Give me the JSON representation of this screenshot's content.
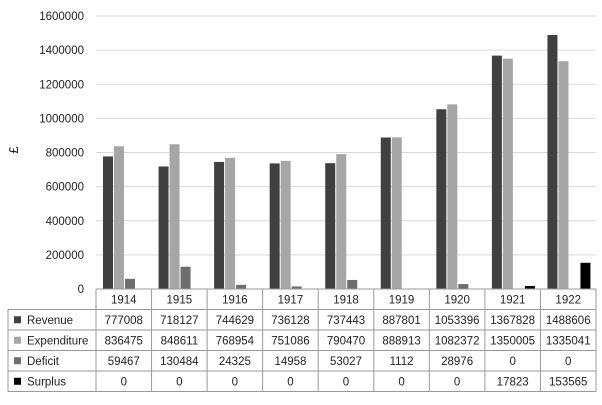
{
  "chart_data": {
    "type": "bar",
    "ylabel": "£",
    "ylim": [
      0,
      1600000
    ],
    "yticks": [
      0,
      200000,
      400000,
      600000,
      800000,
      1000000,
      1200000,
      1400000,
      1600000
    ],
    "grid": true,
    "legend": "data table",
    "categories": [
      "1914",
      "1915",
      "1916",
      "1917",
      "1918",
      "1919",
      "1920",
      "1921",
      "1922"
    ],
    "series": [
      {
        "name": "Revenue",
        "color": "#404040",
        "values": [
          777008,
          718127,
          744629,
          736128,
          737443,
          887801,
          1053396,
          1367828,
          1488606
        ],
        "labels": [
          "777008",
          "718127",
          "744629",
          "736128",
          "737443",
          "887801",
          "1053396",
          "1367828",
          "1488606"
        ]
      },
      {
        "name": "Expenditure",
        "color": "#a6a6a6",
        "values": [
          836475,
          848611,
          768954,
          751086,
          790470,
          888913,
          1082372,
          1350005,
          1335041
        ],
        "labels": [
          "836475",
          "848611",
          "768954",
          "751086",
          "790470",
          "888913",
          "1082372",
          "1350005",
          "1335041"
        ]
      },
      {
        "name": "Deficit",
        "color": "#6e6e6e",
        "values": [
          59467,
          130484,
          24325,
          14958,
          53027,
          1112,
          28976,
          0,
          0
        ],
        "labels": [
          "59467",
          "130484",
          "24325",
          "14958",
          "53027",
          "1112",
          "28976",
          "0",
          "0"
        ]
      },
      {
        "name": "Surplus",
        "color": "#000000",
        "values": [
          0,
          0,
          0,
          0,
          0,
          0,
          0,
          17823,
          153565
        ],
        "labels": [
          "0",
          "0",
          "0",
          "0",
          "0",
          "0",
          "0",
          "17823",
          "153565"
        ]
      }
    ]
  }
}
